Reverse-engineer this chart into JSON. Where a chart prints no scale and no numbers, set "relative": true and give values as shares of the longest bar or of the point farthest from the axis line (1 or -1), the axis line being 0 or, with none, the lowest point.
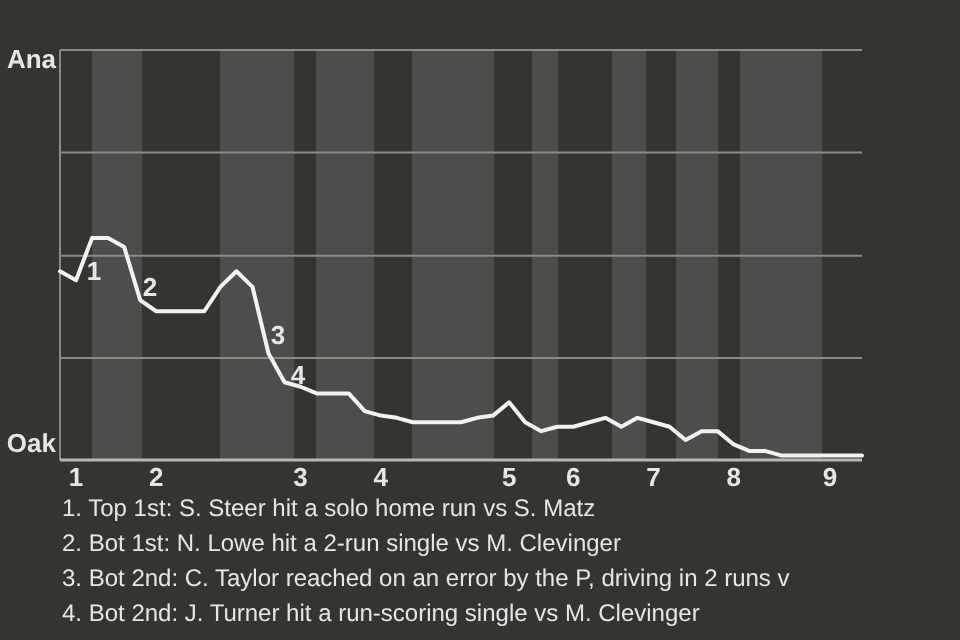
{
  "chart_data": {
    "type": "line",
    "relative": true,
    "categories": [
      null,
      "1",
      null,
      null,
      null,
      null,
      "2",
      null,
      null,
      null,
      null,
      null,
      null,
      null,
      null,
      "3",
      null,
      null,
      null,
      null,
      "4",
      null,
      null,
      null,
      null,
      null,
      null,
      null,
      "5",
      null,
      null,
      null,
      "6",
      null,
      null,
      null,
      null,
      "7",
      null,
      null,
      null,
      null,
      "8",
      null,
      null,
      null,
      null,
      null,
      "9",
      null,
      null
    ],
    "series": [
      {
        "color": "#f2f2f2",
        "values": [
          0.85,
          0.81,
          1,
          1,
          0.96,
          0.72,
          0.67,
          0.67,
          0.67,
          0.67,
          0.78,
          0.85,
          0.78,
          0.48,
          0.35,
          0.33,
          0.3,
          0.3,
          0.3,
          0.22,
          0.2,
          0.19,
          0.17,
          0.17,
          0.17,
          0.17,
          0.19,
          0.2,
          0.26,
          0.17,
          0.13,
          0.15,
          0.15,
          0.17,
          0.19,
          0.15,
          0.19,
          0.17,
          0.15,
          0.09,
          0.13,
          0.13,
          0.07,
          0.04,
          0.04,
          0.02,
          0.02,
          0.02,
          0.02,
          0.02,
          0.02
        ]
      }
    ],
    "marker": "none",
    "line_style": "solid",
    "ref_lines": [
      {
        "axis": "y",
        "value": 0.46,
        "color": "#8c8a87"
      },
      {
        "axis": "y",
        "value": 0.92,
        "color": "#8c8a87"
      }
    ],
    "annotations": [
      "Ana",
      "Oak",
      "1",
      "2",
      "3",
      "4",
      "1. Top 1st: S. Steer hit a solo home run vs S. Matz",
      "2. Bot 1st: N. Lowe hit a 2-run single vs M. Clevinger",
      "3. Bot 2nd: C. Taylor reached on an error by the P, driving in 2 runs v",
      "4. Bot 2nd: J. Turner hit a run-scoring single vs M. Clevinger"
    ]
  }
}
